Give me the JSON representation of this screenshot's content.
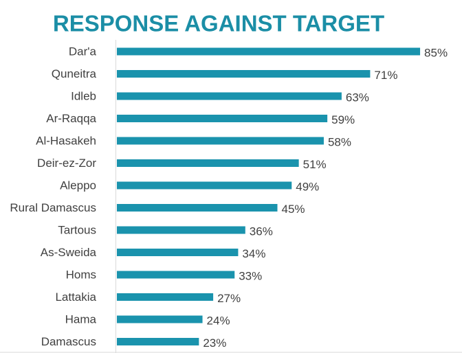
{
  "chart_data": {
    "type": "bar",
    "orientation": "horizontal",
    "title": "RESPONSE AGAINST TARGET",
    "categories": [
      "Dar'a",
      "Quneitra",
      "Idleb",
      "Ar-Raqqa",
      "Al-Hasakeh",
      "Deir-ez-Zor",
      "Aleppo",
      "Rural Damascus",
      "Tartous",
      "As-Sweida",
      "Homs",
      "Lattakia",
      "Hama",
      "Damascus"
    ],
    "values": [
      85,
      71,
      63,
      59,
      58,
      51,
      49,
      45,
      36,
      34,
      33,
      27,
      24,
      23
    ],
    "value_labels": [
      "85%",
      "71%",
      "63%",
      "59%",
      "58%",
      "51%",
      "49%",
      "45%",
      "36%",
      "34%",
      "33%",
      "27%",
      "24%",
      "23%"
    ],
    "color": "#1a93ad",
    "xlim": [
      0,
      90
    ]
  }
}
